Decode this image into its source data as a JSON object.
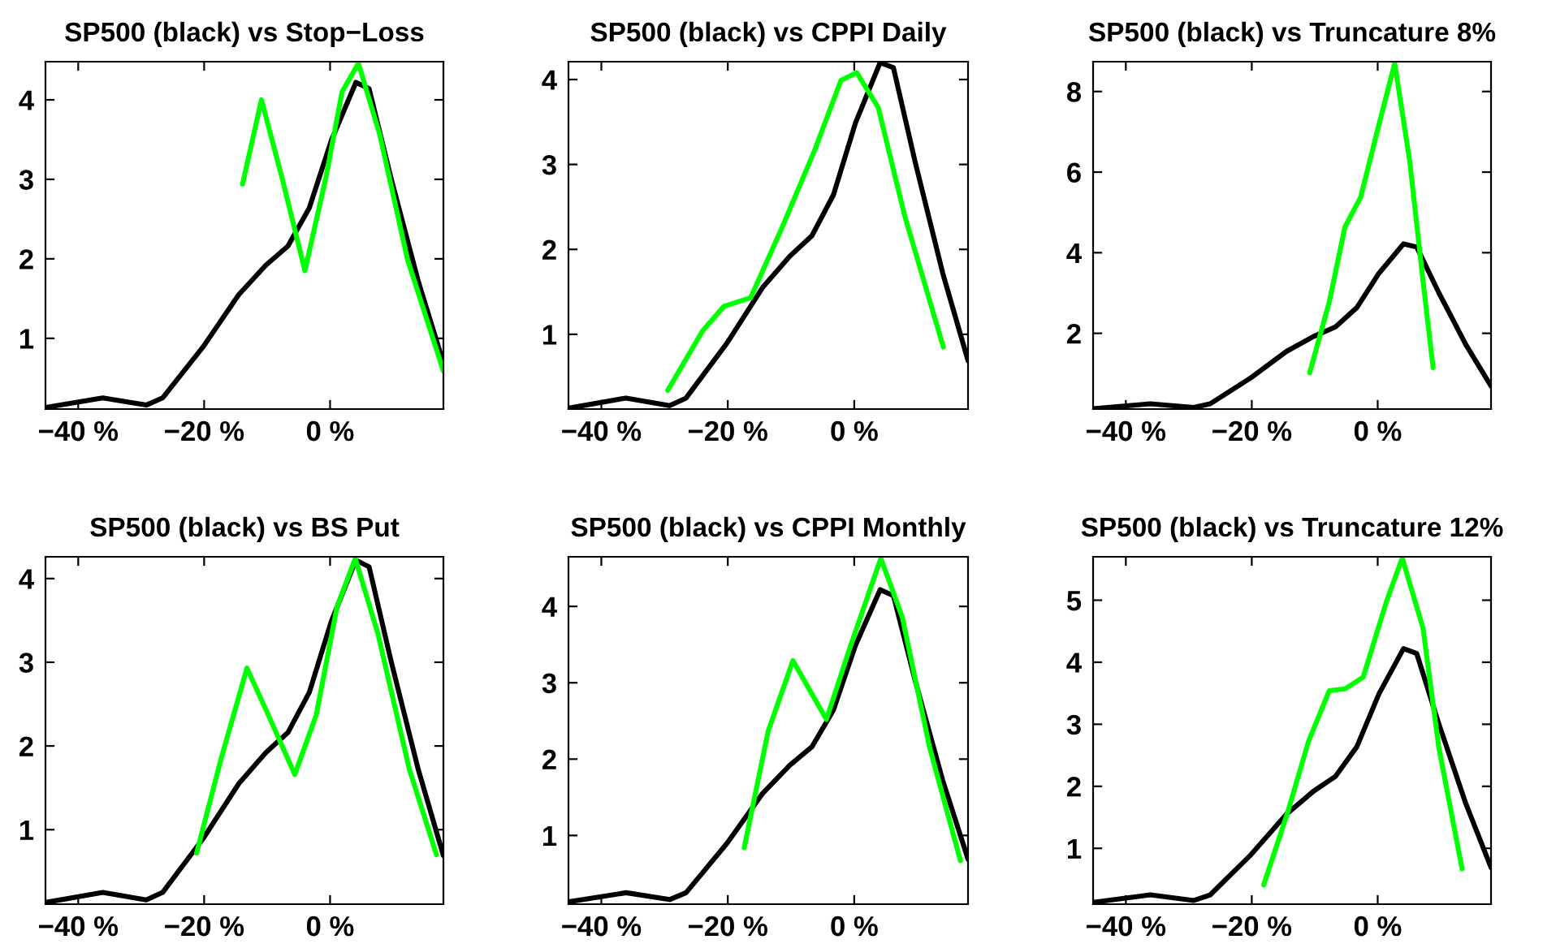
{
  "chart_data": [
    {
      "type": "line",
      "title": "SP500 (black) vs Stop−Loss",
      "xlim": [
        -45.2,
        18
      ],
      "ylim": [
        0.11,
        4.48
      ],
      "xticks": [
        {
          "value": -40,
          "label": "−40 %"
        },
        {
          "value": -20,
          "label": "−20 %"
        },
        {
          "value": 0,
          "label": "0 %"
        }
      ],
      "yticks": [
        1,
        2,
        3,
        4
      ],
      "grid": false,
      "legend": false,
      "line_style": "solid",
      "marker": "none",
      "series": [
        {
          "color": "#000000",
          "x": [
            -45.2,
            -36.1,
            -29.2,
            -26.6,
            -20.1,
            -14.5,
            -10.2,
            -6.7,
            -3.3,
            0.2,
            4.1,
            6.2,
            9.7,
            14.0,
            18.0
          ],
          "values": [
            0.13,
            0.25,
            0.16,
            0.25,
            0.9,
            1.55,
            1.92,
            2.16,
            2.64,
            3.49,
            4.22,
            4.14,
            3.01,
            1.72,
            0.69
          ]
        },
        {
          "color": "#00ff00",
          "x": [
            -13.9,
            -10.9,
            -7.6,
            -4.0,
            -0.7,
            1.9,
            4.5,
            7.9,
            12.3,
            18.0
          ],
          "values": [
            2.94,
            4.0,
            3.01,
            1.85,
            3.01,
            4.1,
            4.46,
            3.56,
            1.99,
            0.59
          ]
        }
      ]
    },
    {
      "type": "line",
      "title": "SP500 (black) vs CPPI Daily",
      "xlim": [
        -45.2,
        18
      ],
      "ylim": [
        0.12,
        4.21
      ],
      "xticks": [
        {
          "value": -40,
          "label": "−40 %"
        },
        {
          "value": -20,
          "label": "−20 %"
        },
        {
          "value": 0,
          "label": "0 %"
        }
      ],
      "yticks": [
        1,
        2,
        3,
        4
      ],
      "grid": false,
      "legend": false,
      "line_style": "solid",
      "marker": "none",
      "series": [
        {
          "color": "#000000",
          "x": [
            -45.2,
            -36.1,
            -29.2,
            -26.6,
            -20.1,
            -14.5,
            -10.2,
            -6.7,
            -3.3,
            0.2,
            4.1,
            6.2,
            9.7,
            14.0,
            18.0
          ],
          "values": [
            0.13,
            0.25,
            0.16,
            0.25,
            0.9,
            1.55,
            1.92,
            2.16,
            2.64,
            3.49,
            4.2,
            4.14,
            3.01,
            1.72,
            0.69
          ]
        },
        {
          "color": "#00ff00",
          "x": [
            -29.5,
            -24.0,
            -20.6,
            -16.4,
            -11.4,
            -6.3,
            -2.1,
            0.4,
            3.8,
            8.0,
            14.1
          ],
          "values": [
            0.34,
            1.04,
            1.33,
            1.43,
            2.26,
            3.16,
            3.99,
            4.08,
            3.67,
            2.39,
            0.85
          ]
        }
      ]
    },
    {
      "type": "line",
      "title": "SP500 (black) vs Truncature 8%",
      "xlim": [
        -45.2,
        18
      ],
      "ylim": [
        0.12,
        8.74
      ],
      "xticks": [
        {
          "value": -40,
          "label": "−40 %"
        },
        {
          "value": -20,
          "label": "−20 %"
        },
        {
          "value": 0,
          "label": "0 %"
        }
      ],
      "yticks": [
        2,
        4,
        6,
        8
      ],
      "grid": false,
      "legend": false,
      "line_style": "solid",
      "marker": "none",
      "series": [
        {
          "color": "#000000",
          "x": [
            -45.2,
            -36.1,
            -29.2,
            -26.6,
            -20.1,
            -14.5,
            -10.2,
            -6.7,
            -3.3,
            0.2,
            4.1,
            6.2,
            9.7,
            14.0,
            18.0
          ],
          "values": [
            0.13,
            0.25,
            0.16,
            0.25,
            0.9,
            1.55,
            1.92,
            2.16,
            2.64,
            3.49,
            4.22,
            4.14,
            3.01,
            1.72,
            0.69
          ]
        },
        {
          "color": "#00ff00",
          "x": [
            -10.8,
            -7.7,
            -5.2,
            -2.7,
            -0.2,
            2.7,
            5.1,
            7.2,
            8.8
          ],
          "values": [
            1.02,
            2.77,
            4.64,
            5.38,
            6.93,
            8.7,
            6.26,
            3.3,
            1.15
          ]
        }
      ]
    },
    {
      "type": "line",
      "title": "SP500 (black) vs BS Put",
      "xlim": [
        -45.2,
        18
      ],
      "ylim": [
        0.11,
        4.26
      ],
      "xticks": [
        {
          "value": -40,
          "label": "−40 %"
        },
        {
          "value": -20,
          "label": "−20 %"
        },
        {
          "value": 0,
          "label": "0 %"
        }
      ],
      "yticks": [
        1,
        2,
        3,
        4
      ],
      "grid": false,
      "legend": false,
      "line_style": "solid",
      "marker": "none",
      "series": [
        {
          "color": "#000000",
          "x": [
            -45.2,
            -36.1,
            -29.2,
            -26.6,
            -20.1,
            -14.5,
            -10.2,
            -6.7,
            -3.3,
            0.2,
            4.1,
            6.2,
            9.7,
            14.0,
            18.0
          ],
          "values": [
            0.13,
            0.25,
            0.16,
            0.25,
            0.9,
            1.55,
            1.92,
            2.16,
            2.64,
            3.49,
            4.22,
            4.14,
            3.01,
            1.72,
            0.69
          ]
        },
        {
          "color": "#00ff00",
          "x": [
            -21.2,
            -17.3,
            -13.2,
            -9.8,
            -5.6,
            -2.2,
            1.1,
            4.0,
            7.6,
            12.6,
            16.9
          ],
          "values": [
            0.72,
            1.85,
            2.93,
            2.37,
            1.66,
            2.37,
            3.66,
            4.24,
            3.34,
            1.72,
            0.7
          ]
        }
      ]
    },
    {
      "type": "line",
      "title": "SP500 (black) vs CPPI Monthly",
      "xlim": [
        -45.2,
        18
      ],
      "ylim": [
        0.1,
        4.65
      ],
      "xticks": [
        {
          "value": -40,
          "label": "−40 %"
        },
        {
          "value": -20,
          "label": "−20 %"
        },
        {
          "value": 0,
          "label": "0 %"
        }
      ],
      "yticks": [
        1,
        2,
        3,
        4
      ],
      "grid": false,
      "legend": false,
      "line_style": "solid",
      "marker": "none",
      "series": [
        {
          "color": "#000000",
          "x": [
            -45.2,
            -36.1,
            -29.2,
            -26.6,
            -20.1,
            -14.5,
            -10.2,
            -6.7,
            -3.3,
            0.2,
            4.1,
            6.2,
            9.7,
            14.0,
            18.0
          ],
          "values": [
            0.13,
            0.25,
            0.16,
            0.25,
            0.9,
            1.55,
            1.92,
            2.16,
            2.64,
            3.49,
            4.22,
            4.14,
            3.01,
            1.72,
            0.69
          ]
        },
        {
          "color": "#00ff00",
          "x": [
            -17.4,
            -13.6,
            -9.7,
            -6.8,
            -4.4,
            -0.8,
            4.2,
            7.6,
            11.9,
            16.8
          ],
          "values": [
            0.84,
            2.37,
            3.29,
            2.87,
            2.52,
            3.43,
            4.63,
            3.86,
            2.16,
            0.67
          ]
        }
      ]
    },
    {
      "type": "line",
      "title": "SP500 (black) vs Truncature 12%",
      "xlim": [
        -45.2,
        18
      ],
      "ylim": [
        0.1,
        5.7
      ],
      "xticks": [
        {
          "value": -40,
          "label": "−40 %"
        },
        {
          "value": -20,
          "label": "−20 %"
        },
        {
          "value": 0,
          "label": "0 %"
        }
      ],
      "yticks": [
        1,
        2,
        3,
        4,
        5
      ],
      "grid": false,
      "legend": false,
      "line_style": "solid",
      "marker": "none",
      "series": [
        {
          "color": "#000000",
          "x": [
            -45.2,
            -36.1,
            -29.2,
            -26.6,
            -20.1,
            -14.5,
            -10.2,
            -6.7,
            -3.3,
            0.2,
            4.1,
            6.2,
            9.7,
            14.0,
            18.0
          ],
          "values": [
            0.13,
            0.25,
            0.16,
            0.25,
            0.9,
            1.55,
            1.92,
            2.16,
            2.64,
            3.49,
            4.22,
            4.14,
            3.01,
            1.72,
            0.69
          ]
        },
        {
          "color": "#00ff00",
          "x": [
            -18.1,
            -14.3,
            -11.0,
            -7.7,
            -5.2,
            -2.3,
            1.4,
            3.9,
            7.2,
            9.7,
            13.4
          ],
          "values": [
            0.41,
            1.58,
            2.72,
            3.54,
            3.57,
            3.76,
            4.98,
            5.68,
            4.55,
            2.63,
            0.67
          ]
        }
      ]
    }
  ]
}
